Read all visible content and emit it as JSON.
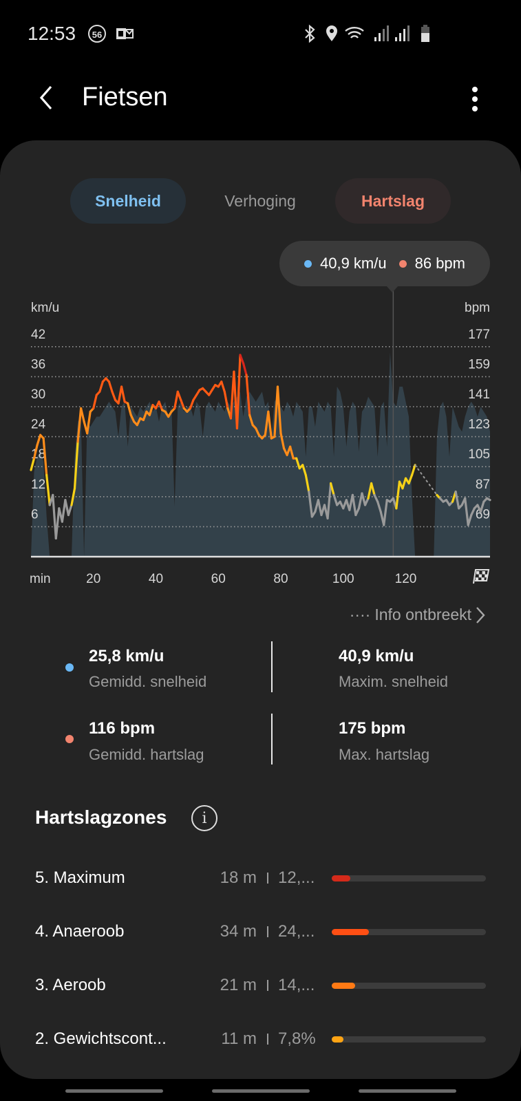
{
  "status_bar": {
    "time": "12:53",
    "notification_badge": "56",
    "icons": [
      "outlook-icon",
      "bluetooth-icon",
      "location-icon",
      "wifi-icon",
      "signal-icon",
      "signal-icon",
      "battery-icon"
    ]
  },
  "header": {
    "title": "Fietsen",
    "back_icon": "chevron-left-icon",
    "menu_icon": "more-vertical-icon"
  },
  "tabs": [
    {
      "label": "Snelheid",
      "active": true,
      "color": "#7fc0f0"
    },
    {
      "label": "Verhoging",
      "active": false
    },
    {
      "label": "Hartslag",
      "active": true,
      "color": "#f2846e"
    }
  ],
  "tooltip": {
    "speed": "40,9 km/u",
    "hr": "86 bpm",
    "speed_color": "#6ab8f5",
    "hr_color": "#f2846e"
  },
  "chart_data": {
    "type": "area+line",
    "xlabel": "min",
    "ylabel_left": "km/u",
    "ylabel_right": "bpm",
    "x_ticks": [
      "20",
      "40",
      "60",
      "80",
      "100",
      "120"
    ],
    "y_ticks_left": [
      "42",
      "36",
      "30",
      "24",
      "18",
      "12",
      "6"
    ],
    "y_ticks_right": [
      "177",
      "159",
      "141",
      "123",
      "105",
      "87",
      "69"
    ],
    "xlim": [
      0,
      147
    ],
    "ylim_left": [
      0,
      42
    ],
    "ylim_right": [
      51,
      177
    ],
    "grid": "dotted horizontal",
    "selected_minute": 116,
    "finish_icon": "checkered-flag-icon",
    "speed_color": "#33414a",
    "hr_zone_colors": {
      "below": "#9a9a9a",
      "zone2": "#f7d117",
      "zone3": "#ff8c1a",
      "zone4": "#ff5a14",
      "zone5": "#d9261c"
    },
    "speed_kmh": [
      0,
      17,
      20,
      21,
      19,
      8,
      0,
      0,
      0,
      0,
      0,
      0,
      0,
      0,
      20,
      27,
      28,
      0,
      27,
      26,
      27,
      28,
      28,
      29,
      30,
      31,
      30,
      29,
      24,
      30,
      31,
      22,
      30,
      29,
      28,
      30,
      29,
      30,
      31,
      29,
      30,
      27,
      30,
      31,
      28,
      30,
      10,
      30,
      31,
      29,
      30,
      30,
      28,
      31,
      30,
      24,
      30,
      31,
      30,
      29,
      31,
      30,
      29,
      31,
      30,
      31,
      32,
      33,
      28,
      32,
      33,
      32,
      31,
      32,
      33,
      30,
      31,
      24,
      31,
      32,
      30,
      29,
      31,
      30,
      28,
      31,
      30,
      29,
      20,
      30,
      30,
      26,
      31,
      30,
      29,
      31,
      30,
      20,
      34,
      33,
      30,
      22,
      29,
      31,
      30,
      21,
      29,
      30,
      32,
      31,
      30,
      20,
      30,
      31,
      22,
      40.9,
      31,
      30,
      34,
      34,
      31,
      28,
      12,
      0,
      0,
      0,
      0,
      0,
      0,
      0,
      24,
      30,
      31,
      28,
      20,
      30,
      28,
      26,
      25,
      28,
      30,
      31,
      30,
      28,
      30,
      29,
      28,
      25
    ],
    "hr_bpm": [
      103,
      110,
      118,
      124,
      122,
      100,
      82,
      88,
      62,
      80,
      72,
      85,
      76,
      82,
      92,
      120,
      140,
      132,
      125,
      138,
      140,
      148,
      150,
      156,
      158,
      156,
      150,
      145,
      143,
      153,
      144,
      143,
      136,
      132,
      130,
      134,
      133,
      138,
      136,
      142,
      140,
      144,
      139,
      138,
      135,
      138,
      140,
      150,
      145,
      140,
      138,
      140,
      145,
      148,
      151,
      152,
      150,
      148,
      151,
      154,
      153,
      156,
      150,
      140,
      134,
      162,
      128,
      172,
      167,
      160,
      136,
      130,
      128,
      124,
      122,
      124,
      138,
      122,
      123,
      153,
      125,
      116,
      112,
      117,
      110,
      110,
      104,
      106,
      100,
      90,
      75,
      78,
      85,
      76,
      82,
      74,
      95,
      88,
      82,
      84,
      80,
      85,
      79,
      88,
      76,
      80,
      89,
      82,
      86,
      95,
      88,
      84,
      78,
      70,
      85,
      84,
      86,
      80,
      96,
      92,
      98,
      95,
      100,
      106,
      null,
      null,
      null,
      null,
      null,
      null,
      88,
      86,
      84,
      85,
      82,
      84,
      90,
      80,
      82,
      86,
      70,
      76,
      80,
      82,
      78,
      84,
      86,
      85
    ]
  },
  "missing_info": {
    "label": "Info ontbreekt",
    "prefix": "····"
  },
  "stats": [
    {
      "value": "25,8 km/u",
      "label": "Gemidd. snelheid",
      "dot_color": "#6ab8f5"
    },
    {
      "value": "40,9 km/u",
      "label": "Maxim. snelheid"
    },
    {
      "value": "116 bpm",
      "label": "Gemidd. hartslag",
      "dot_color": "#f2846e"
    },
    {
      "value": "175 bpm",
      "label": "Max. hartslag"
    }
  ],
  "zones": {
    "title": "Hartslagzones",
    "items": [
      {
        "name": "5. Maximum",
        "time": "18 m",
        "pct": "12,...",
        "fill": 0.12,
        "color": "#d42a1a"
      },
      {
        "name": "4. Anaeroob",
        "time": "34 m",
        "pct": "24,...",
        "fill": 0.24,
        "color": "#ff4f14"
      },
      {
        "name": "3. Aeroob",
        "time": "21 m",
        "pct": "14,...",
        "fill": 0.15,
        "color": "#ff7a14"
      },
      {
        "name": "2. Gewichtscont...",
        "time": "11 m",
        "pct": "7,8%",
        "fill": 0.078,
        "color": "#ffa414"
      }
    ]
  }
}
